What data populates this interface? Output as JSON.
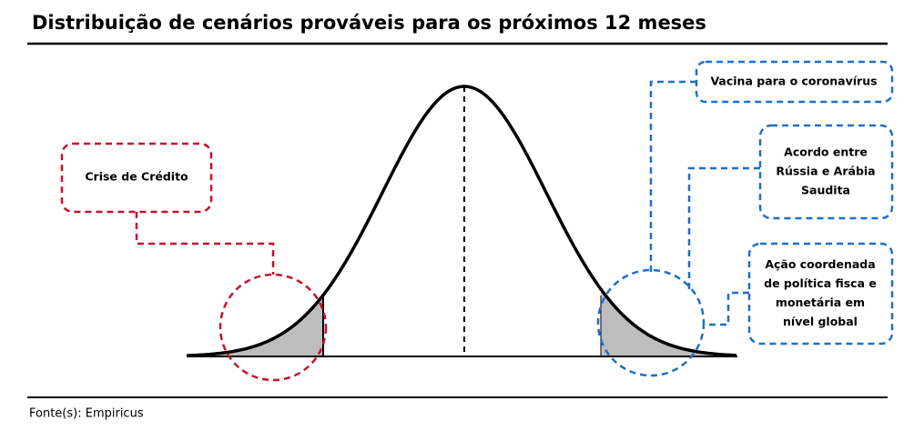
{
  "title": "Distribuição de cenários prováveis para os próximos 12 meses",
  "labels": {
    "left": [
      "Crise de Crédito"
    ],
    "right_top": [
      "Vacina para o coronavírus"
    ],
    "right_middle": [
      "Acordo entre",
      "Rússia e Arábia",
      "Saudita"
    ],
    "right_bottom": [
      "Ação coordenada",
      "de política fisca e",
      "monetária em",
      "nível global"
    ]
  },
  "source": "Fonte(s): Empiricus"
}
